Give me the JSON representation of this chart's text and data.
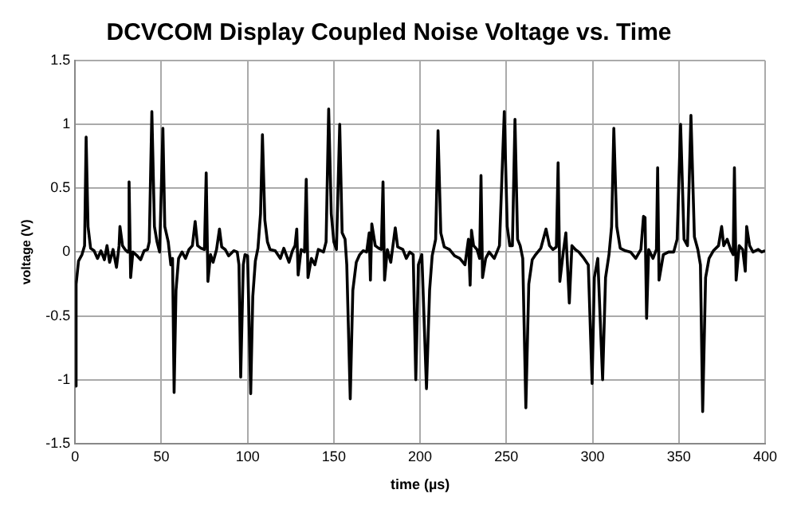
{
  "chart_data": {
    "type": "line",
    "title": "DCVCOM Display Coupled Noise Voltage vs. Time",
    "xlabel": "time (µs)",
    "ylabel": "voltage (V)",
    "x": [
      0,
      0.6,
      2,
      4,
      5.5,
      6.4,
      7.5,
      9,
      11,
      13,
      15,
      17,
      18.5,
      20,
      22,
      24,
      25.5,
      26,
      27.5,
      29,
      30.5,
      31.3,
      32.2,
      33.5,
      36,
      38,
      40,
      42,
      43,
      44.5,
      46,
      47.5,
      49,
      50.9,
      52,
      54,
      55.5,
      56.5,
      57.4,
      58.5,
      60,
      62,
      64,
      66,
      68,
      69.6,
      71,
      73,
      75,
      76,
      77,
      78.5,
      80,
      82,
      83.7,
      85,
      87,
      89,
      92,
      94,
      95,
      96,
      97.5,
      98.5,
      100,
      101.8,
      103,
      104.5,
      106,
      107.5,
      108.6,
      110,
      111.5,
      113,
      116,
      119,
      121,
      124,
      126,
      127.5,
      128.5,
      129.3,
      131,
      133,
      134,
      135,
      137,
      139,
      141,
      144,
      145.5,
      147,
      148.5,
      150,
      151.5,
      153.4,
      154.8,
      156.5,
      157.5,
      159.5,
      161,
      163,
      165,
      167,
      169,
      170.5,
      171.2,
      172,
      174,
      176,
      177.5,
      178.5,
      179.4,
      181,
      183,
      185.6,
      187,
      190,
      192,
      194,
      196,
      197.5,
      199,
      201,
      203.7,
      205.5,
      207,
      209,
      210.4,
      212,
      214,
      217,
      220,
      223,
      226,
      228,
      229,
      229.8,
      231,
      233,
      234.5,
      235.3,
      236.2,
      238,
      240,
      243,
      246,
      248.8,
      250.5,
      252,
      253.5,
      255,
      256.5,
      258,
      259.5,
      261.3,
      263,
      265,
      267,
      270,
      273,
      275,
      277,
      279,
      280,
      281,
      283,
      284.5,
      286.5,
      288,
      290,
      292,
      295,
      297.5,
      299.7,
      301,
      303,
      305.8,
      307.5,
      309.5,
      311,
      312.3,
      314,
      316,
      319,
      322,
      325,
      328,
      329.5,
      330.4,
      331.3,
      332.5,
      335,
      337,
      337.7,
      338.5,
      341,
      344,
      347,
      349,
      351,
      353,
      355,
      357,
      359,
      361,
      362.5,
      363.8,
      365.5,
      367.5,
      370,
      373,
      374.8,
      376,
      378,
      380,
      381.5,
      382.2,
      383.2,
      385,
      387,
      388.5,
      389.3,
      391,
      393,
      396,
      398,
      400
    ],
    "series": [
      {
        "color": "#000000",
        "values": [
          -1.05,
          -0.25,
          -0.07,
          -0.02,
          0.05,
          0.9,
          0.2,
          0.03,
          0.01,
          -0.05,
          0.01,
          -0.06,
          0.05,
          -0.08,
          0.02,
          -0.12,
          0.05,
          0.2,
          0.05,
          0.02,
          0,
          0.55,
          -0.2,
          0,
          -0.03,
          -0.06,
          0.01,
          0.02,
          0.08,
          1.1,
          0.2,
          0.08,
          0,
          0.97,
          0.2,
          0.08,
          -0.1,
          -0.05,
          -1.1,
          -0.3,
          -0.05,
          0,
          -0.05,
          0.02,
          0.05,
          0.24,
          0.05,
          0.03,
          0.02,
          0.62,
          -0.23,
          -0.02,
          -0.08,
          0.02,
          0.18,
          0.04,
          0.02,
          -0.03,
          0.01,
          0,
          -0.1,
          -0.98,
          -0.1,
          -0.02,
          -0.03,
          -1.11,
          -0.35,
          -0.07,
          0.03,
          0.3,
          0.92,
          0.25,
          0.08,
          0.02,
          0.01,
          -0.05,
          0.03,
          -0.08,
          0.01,
          0.05,
          0.18,
          -0.18,
          0.02,
          0,
          0.57,
          -0.2,
          -0.05,
          -0.1,
          0.02,
          0,
          0.08,
          1.12,
          0.3,
          0.08,
          0.02,
          1,
          0.15,
          0.1,
          -0.1,
          -1.15,
          -0.3,
          -0.08,
          -0.02,
          0.01,
          0,
          0.15,
          -0.22,
          0.22,
          0.05,
          0.03,
          0.02,
          0.55,
          -0.22,
          0.02,
          -0.08,
          0.19,
          0.04,
          0.02,
          -0.05,
          0,
          -0.02,
          -1,
          -0.1,
          -0.02,
          -1.07,
          -0.3,
          -0.03,
          0.1,
          0.95,
          0.15,
          0.04,
          0.02,
          -0.03,
          -0.05,
          -0.1,
          0.1,
          -0.26,
          0.17,
          0.05,
          0.02,
          -0.05,
          0.6,
          -0.2,
          -0.05,
          0,
          -0.05,
          0.05,
          1.1,
          0.2,
          0.05,
          0.05,
          1.04,
          0.1,
          0.05,
          -0.05,
          -1.22,
          -0.25,
          -0.06,
          -0.02,
          0.03,
          0.18,
          0.05,
          0.02,
          0.04,
          0.7,
          -0.23,
          0,
          0.15,
          -0.4,
          0.05,
          0.02,
          0,
          -0.05,
          -0.1,
          -1.03,
          -0.2,
          -0.05,
          -1,
          -0.2,
          -0.02,
          0.2,
          0.97,
          0.2,
          0.03,
          0.01,
          0,
          -0.05,
          0.02,
          0.28,
          0.27,
          -0.52,
          0.02,
          -0.05,
          0.02,
          0.66,
          -0.22,
          -0.02,
          0,
          0,
          0.1,
          1,
          0.1,
          0.05,
          1.07,
          0.12,
          0.02,
          -0.1,
          -1.25,
          -0.2,
          -0.05,
          0.01,
          0.05,
          0.2,
          0.05,
          0.1,
          0.02,
          -0.02,
          0.66,
          -0.22,
          0.05,
          0.02,
          -0.15,
          0.2,
          0.05,
          0,
          0.02,
          0,
          0.01
        ]
      }
    ],
    "xlim": [
      0,
      400
    ],
    "xticks": [
      0,
      50,
      100,
      150,
      200,
      250,
      300,
      350,
      400
    ],
    "ylim": [
      -1.5,
      1.5
    ],
    "yticks": [
      -1.5,
      -1,
      -0.5,
      0,
      0.5,
      1,
      1.5
    ],
    "grid": true,
    "line_style": "solid"
  }
}
